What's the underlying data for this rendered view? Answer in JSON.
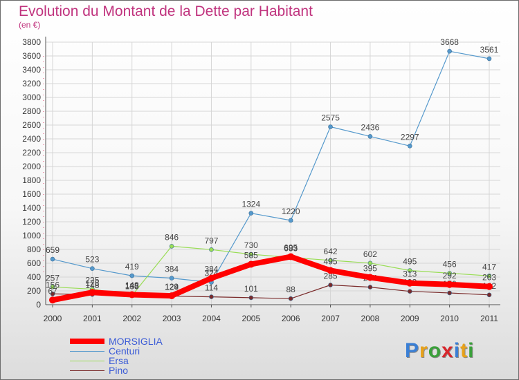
{
  "title": "Evolution du Montant de la Dette par Habitant",
  "subtitle": "(en €)",
  "logo": {
    "text": "Proxiti",
    "colors": [
      "#3a7fd5",
      "#e8a21a",
      "#3aa03a",
      "#d8262c",
      "#3a7fd5",
      "#e8a21a",
      "#3aa03a"
    ]
  },
  "chart_data": {
    "type": "line",
    "x": [
      "2000",
      "2001",
      "2002",
      "2003",
      "2004",
      "2005",
      "2006",
      "2007",
      "2008",
      "2009",
      "2010",
      "2011"
    ],
    "ylim": [
      0,
      3800
    ],
    "yticks": [
      0,
      200,
      400,
      600,
      800,
      1000,
      1200,
      1400,
      1600,
      1800,
      2000,
      2200,
      2400,
      2600,
      2800,
      3000,
      3200,
      3400,
      3600,
      3800
    ],
    "grid": true,
    "legend_position": "bottom-left",
    "series": [
      {
        "name": "MORSIGLIA",
        "color": "#ff0000",
        "values": [
          67,
          178,
          145,
          129,
          384,
          585,
          695,
          495,
          395,
          313,
          292,
          263
        ]
      },
      {
        "name": "Centuri",
        "color": "#5599cc",
        "values": [
          659,
          523,
          419,
          384,
          324,
          1324,
          1220,
          2575,
          2436,
          2297,
          3668,
          3561
        ]
      },
      {
        "name": "Ersa",
        "color": "#99dd55",
        "values": [
          257,
          225,
          133,
          846,
          797,
          730,
          683,
          642,
          602,
          495,
          456,
          417
        ]
      },
      {
        "name": "Pino",
        "color": "#7a2a2a",
        "values": [
          156,
          148,
          148,
          124,
          114,
          101,
          88,
          285,
          254,
          193,
          170,
          142
        ]
      }
    ]
  }
}
